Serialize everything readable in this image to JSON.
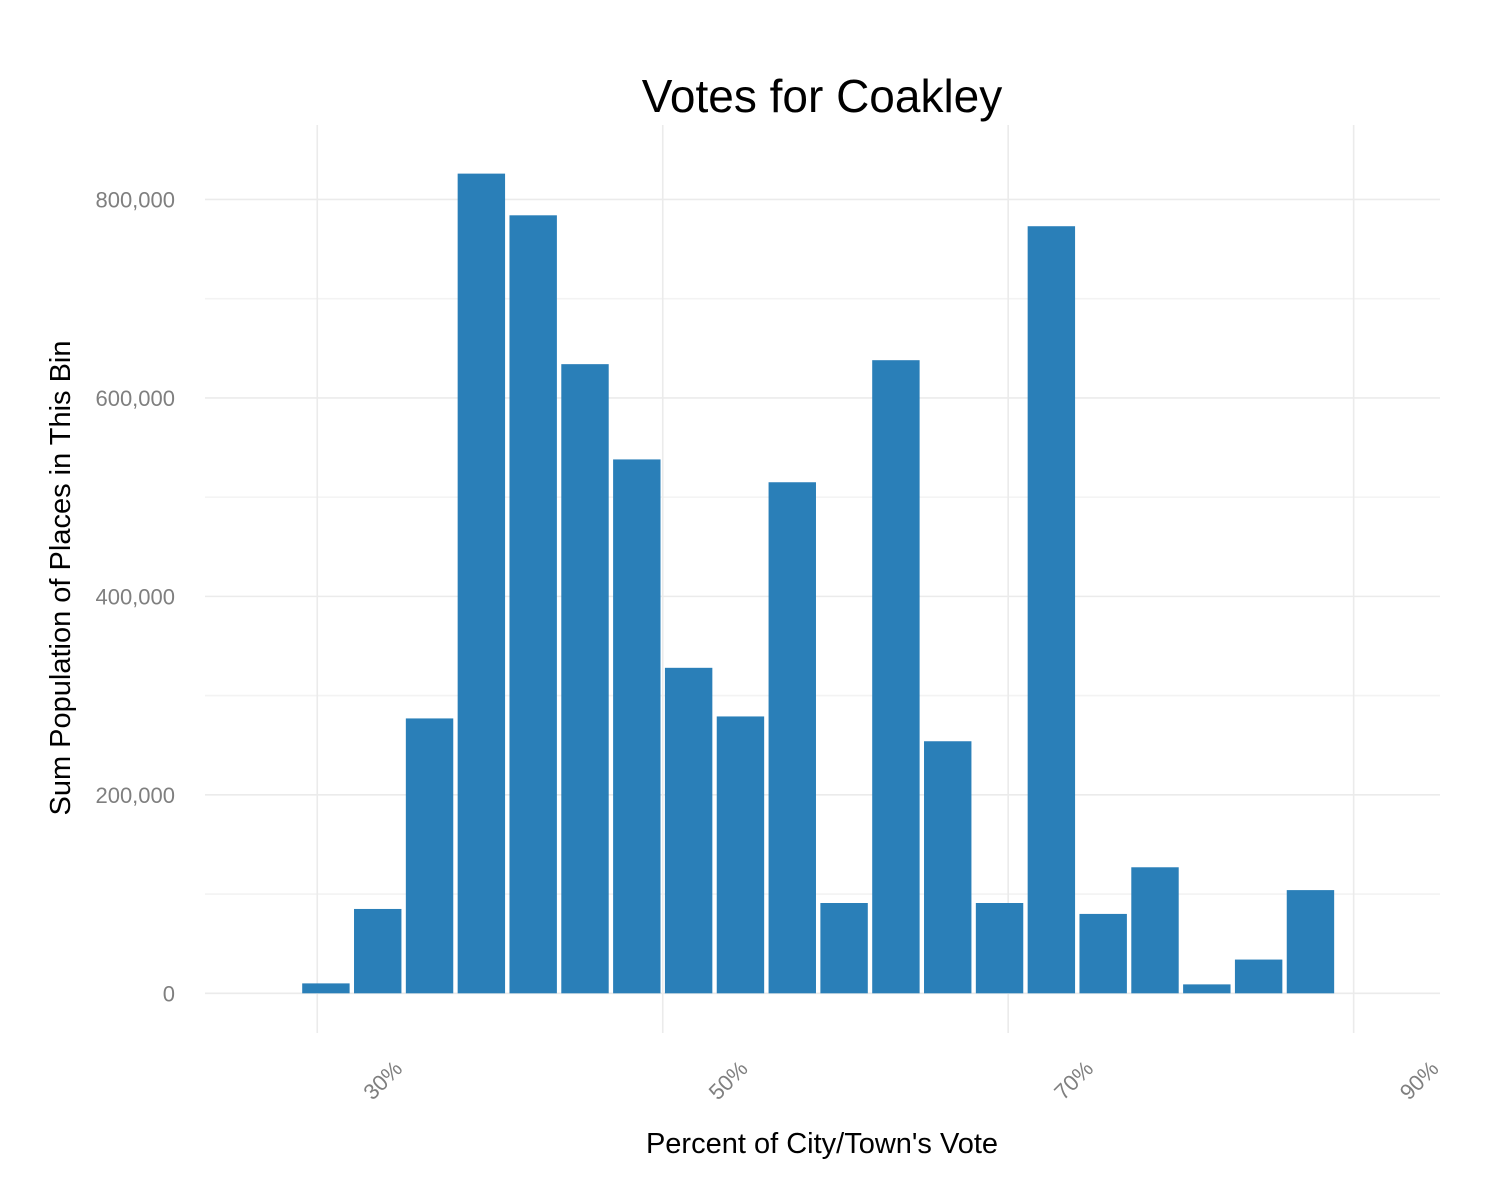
{
  "chart_data": {
    "type": "bar",
    "title": "Votes for Coakley",
    "xlabel": "Percent of City/Town's Vote",
    "ylabel": "Sum Population of Places in This Bin",
    "x_ticks": [
      "30%",
      "50%",
      "70%",
      "90%"
    ],
    "x_tick_values": [
      0.3,
      0.5,
      0.7,
      0.9
    ],
    "y_ticks": [
      "0",
      "200,000",
      "400,000",
      "600,000",
      "800,000"
    ],
    "y_tick_values": [
      0,
      200000,
      400000,
      600000,
      800000
    ],
    "xlim": [
      0.185,
      0.9
    ],
    "ylim": [
      -40000,
      875000
    ],
    "bin_width": 0.03,
    "bins": [
      {
        "x": 0.255,
        "value": 10000
      },
      {
        "x": 0.285,
        "value": 85000
      },
      {
        "x": 0.315,
        "value": 277000
      },
      {
        "x": 0.345,
        "value": 826000
      },
      {
        "x": 0.375,
        "value": 784000
      },
      {
        "x": 0.405,
        "value": 634000
      },
      {
        "x": 0.435,
        "value": 538000
      },
      {
        "x": 0.465,
        "value": 328000
      },
      {
        "x": 0.495,
        "value": 279000
      },
      {
        "x": 0.525,
        "value": 515000
      },
      {
        "x": 0.555,
        "value": 91000
      },
      {
        "x": 0.585,
        "value": 638000
      },
      {
        "x": 0.615,
        "value": 254000
      },
      {
        "x": 0.645,
        "value": 91000
      },
      {
        "x": 0.675,
        "value": 773000
      },
      {
        "x": 0.705,
        "value": 80000
      },
      {
        "x": 0.735,
        "value": 127000
      },
      {
        "x": 0.765,
        "value": 9000
      },
      {
        "x": 0.795,
        "value": 34000
      },
      {
        "x": 0.825,
        "value": 104000
      }
    ],
    "bar_color": "#2a7fb8",
    "grid": true,
    "legend": "none"
  }
}
